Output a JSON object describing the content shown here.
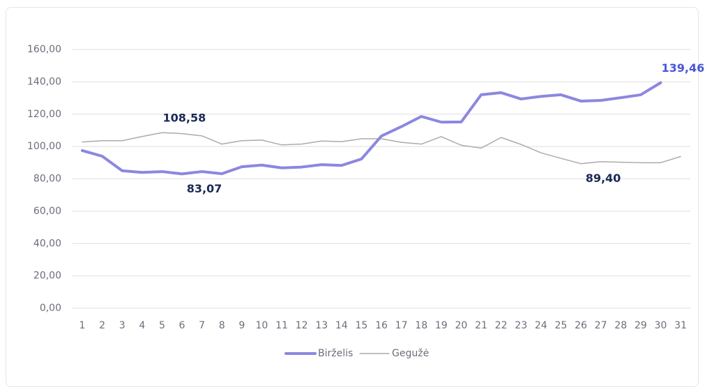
{
  "chart_data": {
    "type": "line",
    "categories": [
      "1",
      "2",
      "3",
      "4",
      "5",
      "6",
      "7",
      "8",
      "9",
      "10",
      "11",
      "12",
      "13",
      "14",
      "15",
      "16",
      "17",
      "18",
      "19",
      "20",
      "21",
      "22",
      "23",
      "24",
      "25",
      "26",
      "27",
      "28",
      "29",
      "30",
      "31"
    ],
    "series": [
      {
        "name": "Birželis",
        "color": "#8c87e0",
        "label_color": "#4a55d6",
        "values": [
          97.5,
          94,
          85,
          84,
          84.5,
          83.07,
          84.5,
          83.2,
          87.5,
          88.5,
          86.8,
          87.3,
          88.8,
          88.3,
          92.3,
          106.5,
          112.3,
          118.6,
          115.1,
          115.2,
          132,
          133.3,
          129.4,
          131,
          132,
          128.1,
          128.5,
          130.2,
          132,
          139.46,
          null
        ],
        "value_labels": [
          null,
          null,
          null,
          null,
          null,
          "83,07",
          null,
          null,
          null,
          null,
          null,
          null,
          null,
          null,
          null,
          null,
          null,
          null,
          null,
          null,
          null,
          null,
          null,
          null,
          null,
          null,
          null,
          null,
          null,
          "139,46",
          null
        ]
      },
      {
        "name": "Gegužė",
        "color": "#ababab",
        "label_color": "#1c2a55",
        "values": [
          102.8,
          103.6,
          103.6,
          106.2,
          108.58,
          108,
          106.6,
          101.5,
          103.6,
          104,
          101,
          101.5,
          103.4,
          103,
          104.8,
          104.8,
          102.6,
          101.5,
          106.1,
          100.8,
          99,
          105.6,
          101.3,
          96.1,
          92.7,
          89.4,
          90.6,
          90.3,
          90,
          90,
          93.8
        ],
        "value_labels": [
          null,
          null,
          null,
          null,
          "108,58",
          null,
          null,
          null,
          null,
          null,
          null,
          null,
          null,
          null,
          null,
          null,
          null,
          null,
          null,
          null,
          null,
          null,
          null,
          null,
          null,
          "89,40",
          null,
          null,
          null,
          null,
          null
        ]
      }
    ],
    "ylim": [
      0,
      160
    ],
    "yticks": [
      {
        "value": 0,
        "label": "0,00"
      },
      {
        "value": 20,
        "label": "20,00"
      },
      {
        "value": 40,
        "label": "40,00"
      },
      {
        "value": 60,
        "label": "60,00"
      },
      {
        "value": 80,
        "label": "80,00"
      },
      {
        "value": 100,
        "label": "100,00"
      },
      {
        "value": 120,
        "label": "120,00"
      },
      {
        "value": 140,
        "label": "140,00"
      },
      {
        "value": 160,
        "label": "160,00"
      }
    ],
    "grid": true,
    "legend": "bottom"
  }
}
